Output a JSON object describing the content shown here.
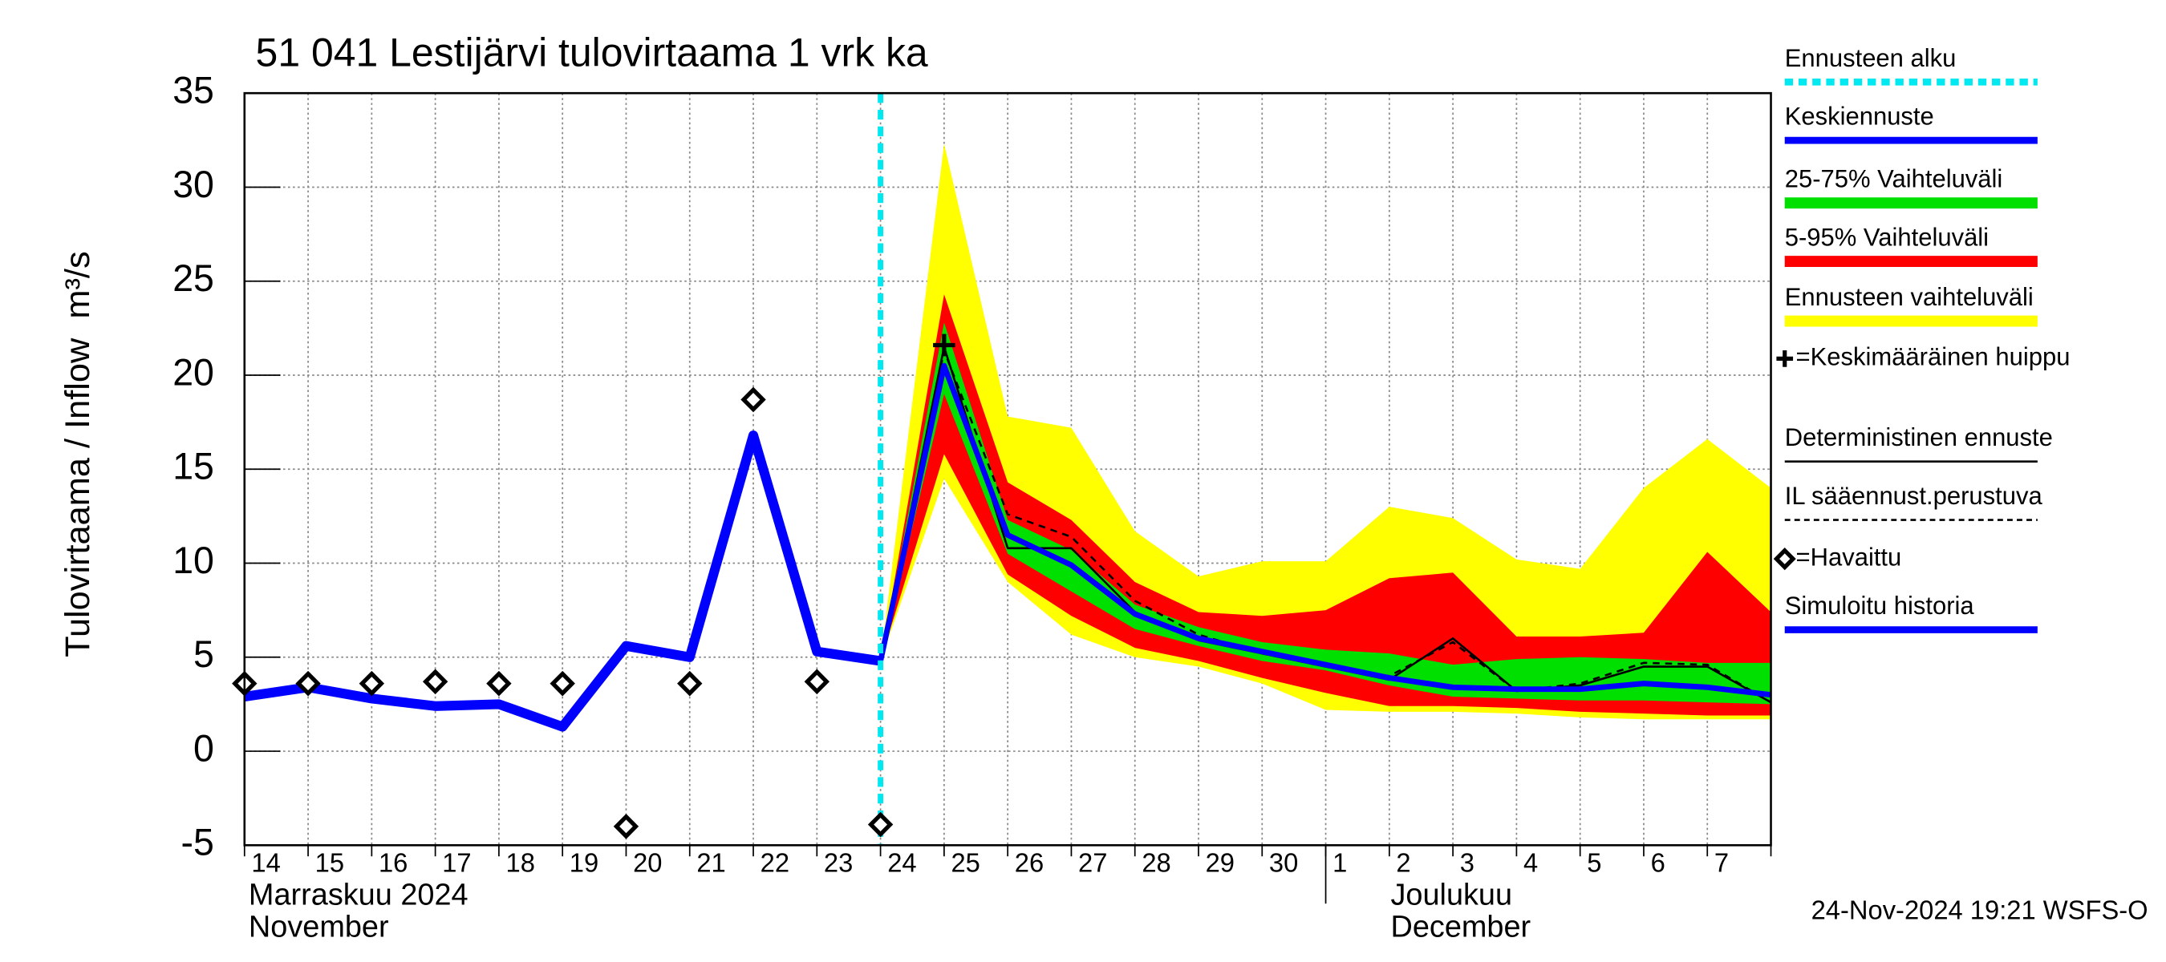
{
  "chart_data": {
    "type": "line",
    "title": "51 041 Lestijärvi tulovirtaama 1 vrk ka",
    "y_label": "Tulovirtaama / Inflow",
    "y_unit": "m³/s",
    "months": [
      {
        "fi": "Marraskuu 2024",
        "en": "November",
        "category": "14"
      },
      {
        "fi": "Joulukuu",
        "en": "December",
        "category": "1"
      }
    ],
    "timestamp": "24-Nov-2024 19:21 WSFS-O",
    "categories": [
      "14",
      "15",
      "16",
      "17",
      "18",
      "19",
      "20",
      "21",
      "22",
      "23",
      "24",
      "25",
      "26",
      "27",
      "28",
      "29",
      "30",
      "1",
      "2",
      "3",
      "4",
      "5",
      "6",
      "7",
      null
    ],
    "ylim": [
      -5,
      35
    ],
    "yticks": [
      -5,
      0,
      5,
      10,
      15,
      20,
      25,
      30,
      35
    ],
    "grid": true,
    "series": [
      {
        "name": "Ennusteen alku",
        "kind": "vline",
        "color": "#00e8f0",
        "category": "24"
      },
      {
        "name": "Keskiennuste",
        "kind": "line",
        "color": "#0000ff",
        "width": 4,
        "values": [
          null,
          null,
          null,
          null,
          null,
          null,
          null,
          null,
          null,
          null,
          4.8,
          20.5,
          11.5,
          9.9,
          7.3,
          6.0,
          5.3,
          4.6,
          3.9,
          3.4,
          3.3,
          3.3,
          3.6,
          3.4,
          3.0
        ]
      },
      {
        "name": "25-75% Vaihteluväli",
        "kind": "band",
        "color": "#00e000",
        "lower": [
          null,
          null,
          null,
          null,
          null,
          null,
          null,
          null,
          null,
          null,
          4.8,
          19.0,
          10.5,
          8.5,
          6.5,
          5.6,
          4.8,
          4.3,
          3.5,
          2.9,
          2.8,
          2.7,
          2.7,
          2.6,
          2.5
        ],
        "values": [
          null,
          null,
          null,
          null,
          null,
          null,
          null,
          null,
          null,
          null,
          4.8,
          22.8,
          12.3,
          10.7,
          7.8,
          6.6,
          5.8,
          5.4,
          5.2,
          4.6,
          4.9,
          5.0,
          4.9,
          4.7,
          4.7
        ]
      },
      {
        "name": "5-95% Vaihteluväli",
        "kind": "band",
        "color": "#ff0000",
        "lower": [
          null,
          null,
          null,
          null,
          null,
          null,
          null,
          null,
          null,
          null,
          4.8,
          15.8,
          9.4,
          7.2,
          5.5,
          4.8,
          3.9,
          3.1,
          2.4,
          2.4,
          2.3,
          2.1,
          2.0,
          1.9,
          1.9
        ],
        "values": [
          null,
          null,
          null,
          null,
          null,
          null,
          null,
          null,
          null,
          null,
          4.8,
          24.3,
          14.3,
          12.3,
          9.0,
          7.4,
          7.2,
          7.5,
          9.2,
          9.5,
          6.1,
          6.1,
          6.3,
          10.6,
          7.4
        ]
      },
      {
        "name": "Ennusteen vaihteluväli",
        "kind": "band",
        "color": "#ffff00",
        "lower": [
          null,
          null,
          null,
          null,
          null,
          null,
          null,
          null,
          null,
          null,
          4.8,
          14.5,
          9.0,
          6.2,
          5.0,
          4.5,
          3.6,
          2.2,
          2.1,
          2.1,
          2.0,
          1.8,
          1.7,
          1.7,
          1.7
        ],
        "values": [
          null,
          null,
          null,
          null,
          null,
          null,
          null,
          null,
          null,
          null,
          4.8,
          32.3,
          17.8,
          17.2,
          11.7,
          9.3,
          10.1,
          10.1,
          13.0,
          12.4,
          10.2,
          9.7,
          14.0,
          16.6,
          14.0
        ]
      },
      {
        "name": "=Keskimääräinen huippu",
        "kind": "peak",
        "color": "#000000",
        "category": "25",
        "value": 21.6
      },
      {
        "name": "Deterministinen ennuste",
        "kind": "line",
        "color": "#000000",
        "width": 1.5,
        "values": [
          null,
          null,
          null,
          null,
          null,
          null,
          null,
          null,
          null,
          null,
          4.8,
          21.5,
          10.8,
          10.8,
          7.4,
          5.9,
          5.2,
          4.5,
          3.8,
          6.0,
          3.2,
          3.5,
          4.5,
          4.5,
          2.6
        ]
      },
      {
        "name": "IL sääennust.perustuva",
        "kind": "line",
        "color": "#000000",
        "width": 1.5,
        "dash": true,
        "values": [
          null,
          null,
          null,
          null,
          null,
          null,
          null,
          null,
          null,
          null,
          4.8,
          21.3,
          12.6,
          11.4,
          8.0,
          6.2,
          5.2,
          4.5,
          4.0,
          5.8,
          3.2,
          3.6,
          4.7,
          4.6,
          2.6
        ]
      },
      {
        "name": "=Havaittu",
        "kind": "marker",
        "color": "#000000",
        "values": [
          3.6,
          3.6,
          3.6,
          3.7,
          3.6,
          3.6,
          -4.0,
          3.6,
          18.7,
          3.7,
          -3.9,
          null,
          null,
          null,
          null,
          null,
          null,
          null,
          null,
          null,
          null,
          null,
          null,
          null,
          null
        ]
      },
      {
        "name": "Simuloitu historia",
        "kind": "line",
        "color": "#0000ff",
        "width": 7,
        "values": [
          2.9,
          3.4,
          2.8,
          2.4,
          2.5,
          1.3,
          5.6,
          5.0,
          16.8,
          5.3,
          4.8,
          null,
          null,
          null,
          null,
          null,
          null,
          null,
          null,
          null,
          null,
          null,
          null,
          null,
          null
        ]
      }
    ]
  }
}
